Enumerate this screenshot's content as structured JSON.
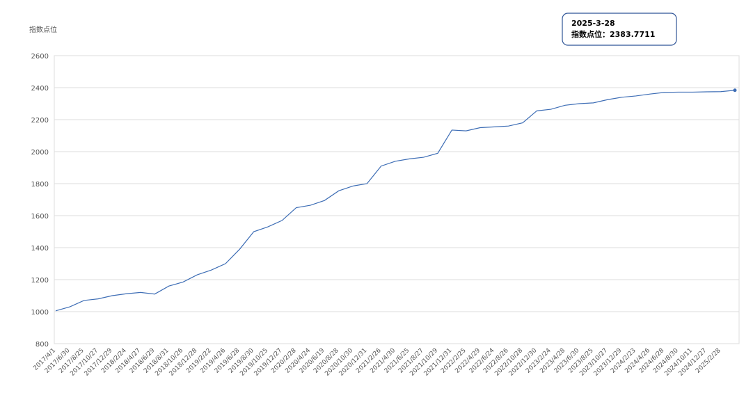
{
  "chart_data": {
    "type": "line",
    "y_label": "指数点位",
    "categories": [
      "2017/4/1",
      "2017/6/30",
      "2017/8/25",
      "2017/10/27",
      "2017/12/29",
      "2018/2/24",
      "2018/4/27",
      "2018/6/29",
      "2018/8/31",
      "2018/10/26",
      "2018/12/28",
      "2019/2/22",
      "2019/4/26",
      "2019/6/28",
      "2019/8/30",
      "2019/10/25",
      "2019/12/27",
      "2020/2/28",
      "2020/4/24",
      "2020/6/19",
      "2020/8/28",
      "2020/10/30",
      "2020/12/31",
      "2021/2/26",
      "2021/4/30",
      "2021/6/25",
      "2021/8/27",
      "2021/10/29",
      "2021/12/31",
      "2022/2/25",
      "2022/4/29",
      "2022/6/24",
      "2022/8/26",
      "2022/10/28",
      "2022/12/30",
      "2023/2/24",
      "2023/4/28",
      "2023/6/30",
      "2023/8/25",
      "2023/10/27",
      "2023/12/29",
      "2024/2/23",
      "2024/4/26",
      "2024/6/28",
      "2024/8/30",
      "2024/10/11",
      "2024/12/27",
      "2025/2/28",
      null
    ],
    "series": [
      {
        "color": "#3d6db5",
        "values": [
          1005,
          1030,
          1070,
          1080,
          1100,
          1112,
          1120,
          1110,
          1160,
          1185,
          1230,
          1260,
          1300,
          1390,
          1500,
          1530,
          1570,
          1650,
          1665,
          1695,
          1755,
          1785,
          1800,
          1910,
          1940,
          1955,
          1965,
          1990,
          2135,
          2130,
          2150,
          2155,
          2160,
          2180,
          2255,
          2265,
          2290,
          2300,
          2305,
          2325,
          2340,
          2348,
          2360,
          2370,
          2372,
          2372,
          2374,
          2375,
          2383.7711
        ]
      }
    ],
    "ylim": [
      800,
      2600
    ],
    "yticks": [
      800,
      1000,
      1200,
      1400,
      1600,
      1800,
      2000,
      2200,
      2400,
      2600
    ],
    "grid": true,
    "tooltip": {
      "date": "2025-3-28",
      "label": "指数点位："
    }
  }
}
